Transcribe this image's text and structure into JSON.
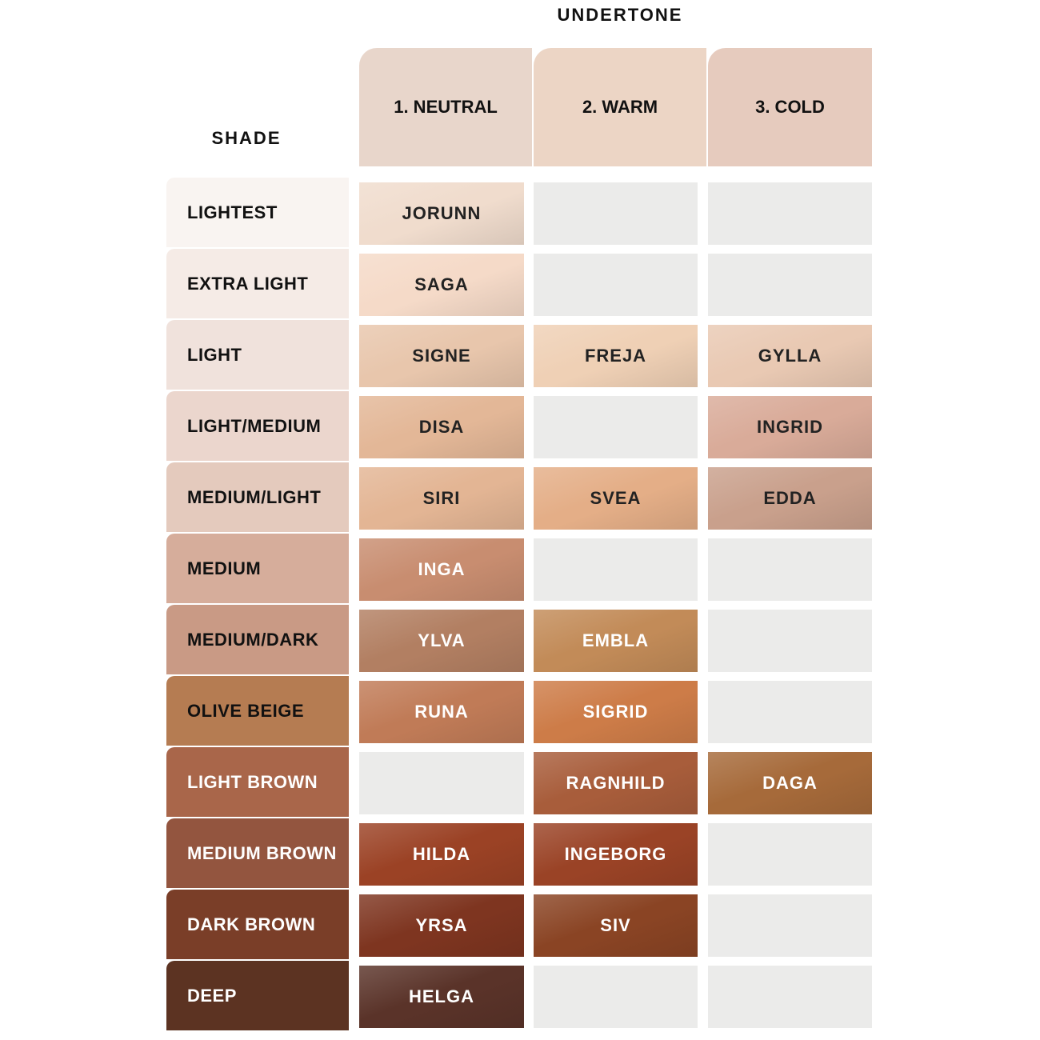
{
  "header": {
    "undertone_label": "UNDERTONE",
    "shade_label": "SHADE",
    "undertones": [
      "1. NEUTRAL",
      "2. WARM",
      "3. COLD"
    ]
  },
  "table": {
    "rows": [
      {
        "shade": "LIGHTEST",
        "cells": [
          "JORUNN",
          null,
          null
        ]
      },
      {
        "shade": "EXTRA LIGHT",
        "cells": [
          "SAGA",
          null,
          null
        ]
      },
      {
        "shade": "LIGHT",
        "cells": [
          "SIGNE",
          "FREJA",
          "GYLLA"
        ]
      },
      {
        "shade": "LIGHT/MEDIUM",
        "cells": [
          "DISA",
          null,
          "INGRID"
        ]
      },
      {
        "shade": "MEDIUM/LIGHT",
        "cells": [
          "SIRI",
          "SVEA",
          "EDDA"
        ]
      },
      {
        "shade": "MEDIUM",
        "cells": [
          "INGA",
          null,
          null
        ]
      },
      {
        "shade": "MEDIUM/DARK",
        "cells": [
          "YLVA",
          "EMBLA",
          null
        ]
      },
      {
        "shade": "OLIVE BEIGE",
        "cells": [
          "RUNA",
          "SIGRID",
          null
        ]
      },
      {
        "shade": "LIGHT BROWN",
        "cells": [
          null,
          "RAGNHILD",
          "DAGA"
        ]
      },
      {
        "shade": "MEDIUM BROWN",
        "cells": [
          "HILDA",
          "INGEBORG",
          null
        ]
      },
      {
        "shade": "DARK BROWN",
        "cells": [
          "YRSA",
          "SIV",
          null
        ]
      },
      {
        "shade": "DEEP",
        "cells": [
          "HELGA",
          null,
          null
        ]
      }
    ]
  }
}
